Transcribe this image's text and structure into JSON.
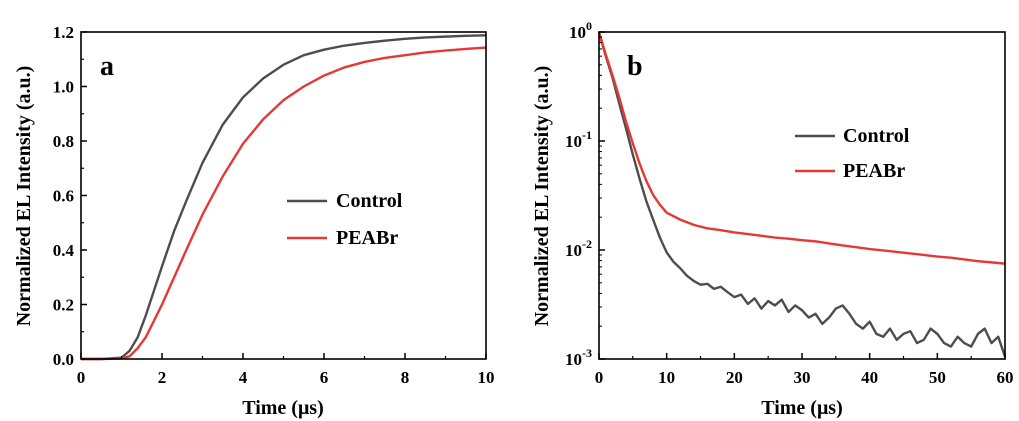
{
  "chart_data": [
    {
      "type": "line",
      "panel_label": "a",
      "xlabel": "Time (μs)",
      "ylabel": "Normalized EL Intensity (a.u.)",
      "xlim": [
        0,
        10
      ],
      "ylim": [
        0,
        1.2
      ],
      "y_scale": "linear",
      "x_ticks": [
        "0",
        "2",
        "4",
        "6",
        "8",
        "10"
      ],
      "y_ticks": [
        "0.0",
        "0.2",
        "0.4",
        "0.6",
        "0.8",
        "1.0",
        "1.2"
      ],
      "legend_position": "center-right",
      "series": [
        {
          "name": "Control",
          "color": "#4d4d4d",
          "x": [
            0,
            0.5,
            1.0,
            1.2,
            1.4,
            1.6,
            1.8,
            2.0,
            2.3,
            2.6,
            3.0,
            3.5,
            4.0,
            4.5,
            5.0,
            5.5,
            6.0,
            6.5,
            7.0,
            7.5,
            8.0,
            8.5,
            9.0,
            9.5,
            10.0
          ],
          "y": [
            0.0,
            0.0,
            0.005,
            0.03,
            0.08,
            0.16,
            0.25,
            0.34,
            0.47,
            0.58,
            0.72,
            0.86,
            0.96,
            1.03,
            1.08,
            1.115,
            1.135,
            1.15,
            1.16,
            1.168,
            1.175,
            1.18,
            1.183,
            1.186,
            1.188
          ]
        },
        {
          "name": "PEABr",
          "color": "#e53935",
          "x": [
            0,
            0.5,
            1.0,
            1.2,
            1.4,
            1.6,
            1.8,
            2.0,
            2.3,
            2.6,
            3.0,
            3.5,
            4.0,
            4.5,
            5.0,
            5.5,
            6.0,
            6.5,
            7.0,
            7.5,
            8.0,
            8.5,
            9.0,
            9.5,
            10.0
          ],
          "y": [
            0.0,
            0.0,
            0.002,
            0.01,
            0.04,
            0.08,
            0.14,
            0.2,
            0.3,
            0.4,
            0.53,
            0.67,
            0.79,
            0.88,
            0.95,
            1.0,
            1.04,
            1.07,
            1.09,
            1.105,
            1.115,
            1.125,
            1.132,
            1.138,
            1.143
          ]
        }
      ]
    },
    {
      "type": "line",
      "panel_label": "b",
      "xlabel": "Time (μs)",
      "ylabel": "Normalized EL Intensity (a.u.)",
      "xlim": [
        0,
        60
      ],
      "ylim": [
        0.001,
        1
      ],
      "y_scale": "log",
      "x_ticks": [
        "0",
        "10",
        "20",
        "30",
        "40",
        "50",
        "60"
      ],
      "y_ticks": [
        {
          "base": "10",
          "exp": "0"
        },
        {
          "base": "10",
          "exp": "-1"
        },
        {
          "base": "10",
          "exp": "-2"
        },
        {
          "base": "10",
          "exp": "-3"
        }
      ],
      "legend_position": "upper-right",
      "series": [
        {
          "name": "Control",
          "color": "#4d4d4d",
          "x": [
            0,
            1,
            2,
            3,
            4,
            5,
            6,
            7,
            8,
            9,
            10,
            11,
            12,
            13,
            14,
            15,
            16,
            17,
            18,
            19,
            20,
            21,
            22,
            23,
            24,
            25,
            26,
            27,
            28,
            29,
            30,
            31,
            32,
            33,
            34,
            35,
            36,
            37,
            38,
            39,
            40,
            41,
            42,
            43,
            44,
            45,
            46,
            47,
            48,
            49,
            50,
            51,
            52,
            53,
            54,
            55,
            56,
            57,
            58,
            59,
            60
          ],
          "y": [
            1.0,
            0.6,
            0.38,
            0.22,
            0.13,
            0.075,
            0.045,
            0.028,
            0.019,
            0.013,
            0.0095,
            0.0078,
            0.0068,
            0.0058,
            0.0052,
            0.0048,
            0.0049,
            0.0044,
            0.0046,
            0.0041,
            0.0037,
            0.0039,
            0.0032,
            0.0036,
            0.0029,
            0.0034,
            0.0031,
            0.0035,
            0.0027,
            0.0031,
            0.0028,
            0.0024,
            0.0026,
            0.0021,
            0.0024,
            0.0029,
            0.0031,
            0.0026,
            0.0021,
            0.0019,
            0.0022,
            0.0017,
            0.0016,
            0.0019,
            0.0015,
            0.0017,
            0.0018,
            0.0014,
            0.0015,
            0.0019,
            0.0017,
            0.0014,
            0.0013,
            0.0016,
            0.0014,
            0.0013,
            0.0017,
            0.0019,
            0.0014,
            0.0016,
            0.00105
          ]
        },
        {
          "name": "PEABr",
          "color": "#e53935",
          "x": [
            0,
            1,
            2,
            3,
            4,
            5,
            6,
            7,
            8,
            9,
            10,
            12,
            14,
            16,
            18,
            20,
            22,
            24,
            26,
            28,
            30,
            32,
            34,
            36,
            38,
            40,
            42,
            44,
            46,
            48,
            50,
            52,
            54,
            56,
            58,
            60
          ],
          "y": [
            1.0,
            0.62,
            0.4,
            0.25,
            0.15,
            0.095,
            0.062,
            0.043,
            0.032,
            0.026,
            0.022,
            0.019,
            0.017,
            0.0158,
            0.0152,
            0.0145,
            0.014,
            0.0135,
            0.013,
            0.0127,
            0.0123,
            0.012,
            0.0115,
            0.011,
            0.0106,
            0.0102,
            0.0099,
            0.0096,
            0.0093,
            0.009,
            0.0087,
            0.0085,
            0.0082,
            0.0079,
            0.0077,
            0.0075
          ]
        }
      ]
    }
  ]
}
